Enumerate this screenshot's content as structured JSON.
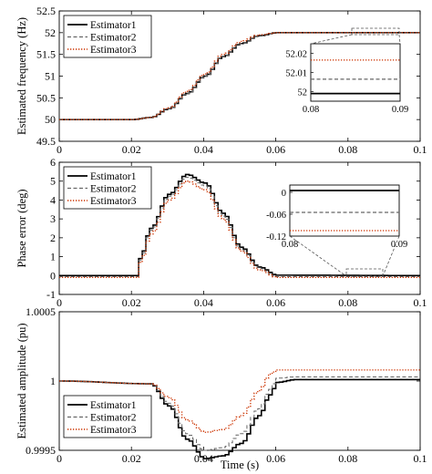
{
  "x_label": "Time (s)",
  "legend_labels": [
    "Estimator1",
    "Estimator2",
    "Estimator3"
  ],
  "series_colors": [
    "#000000",
    "#666666",
    "#cc3300"
  ],
  "series_styles": [
    "solid",
    "dashed",
    "dotted"
  ],
  "chart_data": [
    {
      "type": "line",
      "ylabel": "Estimated frequency (Hz)",
      "xlim": [
        0,
        0.1
      ],
      "ylim": [
        49.5,
        52.5
      ],
      "x_ticks": [
        "0",
        "0.02",
        "0.04",
        "0.06",
        "0.08",
        "0.1"
      ],
      "y_ticks": [
        "49.5",
        "50",
        "50.5",
        "51",
        "51.5",
        "52",
        "52.5"
      ],
      "legend_position": "top-left",
      "description_points": {
        "x": [
          0,
          0.02,
          0.025,
          0.03,
          0.035,
          0.04,
          0.045,
          0.05,
          0.055,
          0.06,
          0.1
        ],
        "Estimator1": [
          50,
          50,
          50.05,
          50.25,
          50.6,
          51.0,
          51.45,
          51.75,
          51.93,
          52.0,
          52.0
        ],
        "Estimator2": [
          50,
          50,
          50.05,
          50.25,
          50.6,
          51.0,
          51.45,
          51.75,
          51.93,
          52.0,
          52.0
        ],
        "Estimator3": [
          50,
          50,
          50.05,
          50.27,
          50.65,
          51.05,
          51.5,
          51.8,
          51.95,
          52.0,
          52.0
        ]
      },
      "inset": {
        "xlim": [
          0.08,
          0.09
        ],
        "ylim": [
          51.995,
          52.025
        ],
        "x_ticks": [
          "0.08",
          "0.09"
        ],
        "y_ticks": [
          "52",
          "52.01",
          "52.02"
        ],
        "levels": {
          "Estimator1": 51.999,
          "Estimator2": 52.0065,
          "Estimator3": 52.0165
        }
      }
    },
    {
      "type": "line",
      "ylabel": "Phase error (deg)",
      "xlim": [
        0,
        0.1
      ],
      "ylim": [
        -1,
        6
      ],
      "x_ticks": [
        "0",
        "0.02",
        "0.04",
        "0.06",
        "0.08",
        "0.1"
      ],
      "y_ticks": [
        "-1",
        "0",
        "1",
        "2",
        "3",
        "4",
        "5",
        "6"
      ],
      "legend_position": "top-left",
      "description_points": {
        "x": [
          0,
          0.021,
          0.022,
          0.025,
          0.03,
          0.035,
          0.04,
          0.045,
          0.05,
          0.055,
          0.06,
          0.1
        ],
        "Estimator1": [
          0,
          0,
          0.9,
          2.5,
          4.3,
          5.35,
          4.9,
          3.3,
          1.5,
          0.45,
          0.02,
          0
        ],
        "Estimator2": [
          -0.06,
          -0.06,
          0.8,
          2.4,
          4.2,
          5.2,
          4.75,
          3.15,
          1.4,
          0.4,
          -0.06,
          -0.06
        ],
        "Estimator3": [
          -0.1,
          -0.1,
          0.7,
          2.2,
          4.0,
          5.0,
          4.55,
          3.0,
          1.3,
          0.3,
          -0.1,
          -0.1
        ]
      },
      "inset": {
        "xlim": [
          0.08,
          0.09
        ],
        "ylim": [
          -0.12,
          0.02
        ],
        "x_ticks": [
          "0.08",
          "0.09"
        ],
        "y_ticks": [
          "0",
          "-0.06",
          "-0.12"
        ],
        "levels": {
          "Estimator1": 0.005,
          "Estimator2": -0.055,
          "Estimator3": -0.105
        }
      }
    },
    {
      "type": "line",
      "ylabel": "Estimated amplitude (pu)",
      "xlim": [
        0,
        0.1
      ],
      "ylim": [
        0.9995,
        1.0005
      ],
      "x_ticks": [
        "0",
        "0.02",
        "0.04",
        "0.06",
        "0.08",
        "0.1"
      ],
      "y_ticks": [
        "0.9995",
        "1",
        "1.0005"
      ],
      "legend_position": "bottom-left",
      "description_points": {
        "x": [
          0,
          0.025,
          0.03,
          0.035,
          0.04,
          0.045,
          0.05,
          0.055,
          0.058,
          0.06,
          0.065,
          0.1
        ],
        "Estimator1": [
          1.0,
          0.99998,
          0.99982,
          0.99958,
          0.99944,
          0.99946,
          0.99955,
          0.99975,
          0.9999,
          0.99999,
          1.00001,
          1.00001
        ],
        "Estimator2": [
          1.0,
          0.99998,
          0.99984,
          0.99962,
          0.9995,
          0.99952,
          0.99962,
          0.9998,
          0.99994,
          1.00002,
          1.00003,
          1.00003
        ],
        "Estimator3": [
          1.0,
          0.99998,
          0.99988,
          0.99972,
          0.99963,
          0.99965,
          0.99975,
          0.99993,
          1.00005,
          1.00008,
          1.00008,
          1.00008
        ]
      }
    }
  ]
}
